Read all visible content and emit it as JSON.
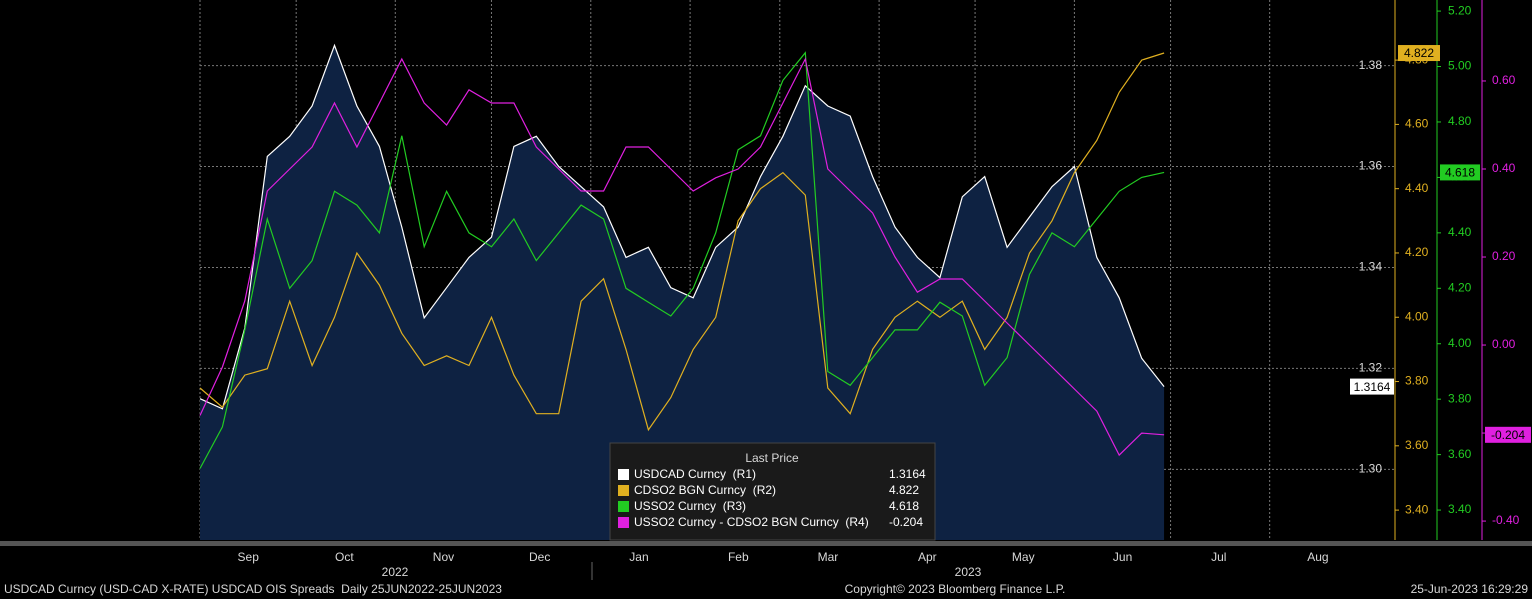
{
  "chart_data": {
    "type": "line",
    "legend_title": "Last Price",
    "footer_left": "USDCAD Curncy (USD-CAD X-RATE) USDCAD OIS Spreads  Daily 25JUN2022-25JUN2023",
    "footer_center": "Copyright© 2023 Bloomberg Finance L.P.",
    "footer_right": "25-Jun-2023 16:29:29",
    "year_labels": [
      "2022",
      "2023"
    ],
    "categories": [
      null,
      null,
      null,
      null,
      null,
      null,
      null,
      null,
      null,
      null,
      null,
      null,
      null,
      null,
      null,
      null,
      null,
      null,
      null,
      null,
      null,
      null,
      null,
      null,
      null,
      null,
      null,
      null,
      null,
      null,
      null,
      null,
      null,
      null,
      null,
      null,
      null,
      null,
      null,
      null,
      null,
      null,
      null,
      null
    ],
    "xlim": [
      0,
      53.3
    ],
    "xticks": [
      {
        "value": 0,
        "label": "Sep"
      },
      {
        "value": 4.29,
        "label": "Oct"
      },
      {
        "value": 8.71,
        "label": "Nov"
      },
      {
        "value": 13.0,
        "label": "Dec"
      },
      {
        "value": 17.43,
        "label": "Jan"
      },
      {
        "value": 21.86,
        "label": "Feb"
      },
      {
        "value": 25.86,
        "label": "Mar"
      },
      {
        "value": 30.29,
        "label": "Apr"
      },
      {
        "value": 34.57,
        "label": "May"
      },
      {
        "value": 39.0,
        "label": "Jun"
      },
      {
        "value": 43.29,
        "label": "Jul"
      },
      {
        "value": 47.71,
        "label": "Aug"
      }
    ],
    "ylim": [
      1.286,
      1.393
    ],
    "yticks": [
      {
        "value": 1.3,
        "label": "1.30"
      },
      {
        "value": 1.32,
        "label": "1.32"
      },
      {
        "value": 1.34,
        "label": "1.34"
      },
      {
        "value": 1.36,
        "label": "1.36"
      },
      {
        "value": 1.38,
        "label": "1.38"
      }
    ],
    "y2lim": [
      3.307,
      4.987
    ],
    "y2ticks": [
      {
        "value": 3.4,
        "label": "3.40"
      },
      {
        "value": 3.6,
        "label": "3.60"
      },
      {
        "value": 3.8,
        "label": "3.80"
      },
      {
        "value": 4.0,
        "label": "4.00"
      },
      {
        "value": 4.2,
        "label": "4.20"
      },
      {
        "value": 4.4,
        "label": "4.40"
      },
      {
        "value": 4.6,
        "label": "4.60"
      },
      {
        "value": 4.8,
        "label": "4.80"
      }
    ],
    "y3lim": [
      3.292,
      5.24
    ],
    "y3ticks": [
      {
        "value": 3.4,
        "label": "3.40"
      },
      {
        "value": 3.6,
        "label": "3.60"
      },
      {
        "value": 3.8,
        "label": "3.80"
      },
      {
        "value": 4.0,
        "label": "4.00"
      },
      {
        "value": 4.2,
        "label": "4.20"
      },
      {
        "value": 4.4,
        "label": "4.40"
      },
      {
        "value": 4.6,
        "label": "4.60"
      },
      {
        "value": 4.8,
        "label": "4.80"
      },
      {
        "value": 5.0,
        "label": "5.00"
      },
      {
        "value": 5.2,
        "label": "5.20"
      }
    ],
    "y4lim": [
      -0.443,
      0.784
    ],
    "y4ticks": [
      {
        "value": -0.4,
        "label": "-0.40"
      },
      {
        "value": -0.2,
        "label": "-0.20"
      },
      {
        "value": 0,
        "label": "0.00"
      },
      {
        "value": 0.2,
        "label": "0.20"
      },
      {
        "value": 0.4,
        "label": "0.40"
      },
      {
        "value": 0.6,
        "label": "0.60"
      }
    ],
    "grid": true,
    "series": [
      {
        "name": "USDCAD Curncy  (R1)",
        "color": "#ffffff",
        "axis": "y",
        "area": true,
        "values": [
          1.314,
          1.312,
          1.328,
          1.362,
          1.366,
          1.372,
          1.384,
          1.372,
          1.364,
          1.348,
          1.33,
          1.336,
          1.342,
          1.346,
          1.364,
          1.366,
          1.36,
          1.356,
          1.352,
          1.342,
          1.344,
          1.336,
          1.334,
          1.344,
          1.348,
          1.358,
          1.366,
          1.376,
          1.372,
          1.37,
          1.358,
          1.348,
          1.342,
          1.338,
          1.354,
          1.358,
          1.344,
          1.35,
          1.356,
          1.36,
          1.342,
          1.334,
          1.322,
          1.3164
        ]
      },
      {
        "name": "CDSO2 BGN Curncy  (R2)",
        "color": "#e0b020",
        "axis": "y2",
        "values": [
          3.78,
          3.72,
          3.82,
          3.84,
          4.05,
          3.85,
          4.0,
          4.2,
          4.1,
          3.95,
          3.85,
          3.88,
          3.85,
          4.0,
          3.82,
          3.7,
          3.7,
          4.05,
          4.12,
          3.9,
          3.65,
          3.75,
          3.9,
          4.0,
          4.3,
          4.4,
          4.45,
          4.38,
          3.78,
          3.7,
          3.9,
          4.0,
          4.05,
          4.0,
          4.05,
          3.9,
          4.0,
          4.2,
          4.3,
          4.45,
          4.55,
          4.7,
          4.8,
          4.822
        ]
      },
      {
        "name": "USSO2 Curncy  (R3)",
        "color": "#22cc22",
        "axis": "y3",
        "values": [
          3.55,
          3.7,
          4.05,
          4.45,
          4.2,
          4.3,
          4.55,
          4.5,
          4.4,
          4.75,
          4.35,
          4.55,
          4.4,
          4.35,
          4.45,
          4.3,
          4.4,
          4.5,
          4.45,
          4.2,
          4.15,
          4.1,
          4.2,
          4.4,
          4.7,
          4.75,
          4.95,
          5.05,
          3.9,
          3.85,
          3.95,
          4.05,
          4.05,
          4.15,
          4.1,
          3.85,
          3.95,
          4.25,
          4.4,
          4.35,
          4.45,
          4.55,
          4.6,
          4.618
        ]
      },
      {
        "name": "USSO2 Curncy - CDSO2 BGN Curncy  (R4)",
        "color": "#e020e0",
        "axis": "y4",
        "values": [
          -0.16,
          -0.05,
          0.1,
          0.35,
          0.4,
          0.45,
          0.55,
          0.45,
          0.55,
          0.65,
          0.55,
          0.5,
          0.58,
          0.55,
          0.55,
          0.45,
          0.4,
          0.35,
          0.35,
          0.45,
          0.45,
          0.4,
          0.35,
          0.38,
          0.4,
          0.45,
          0.55,
          0.65,
          0.4,
          0.35,
          0.3,
          0.2,
          0.12,
          0.15,
          0.15,
          0.1,
          0.05,
          0.0,
          -0.05,
          -0.1,
          -0.15,
          -0.25,
          -0.2,
          -0.204
        ]
      }
    ]
  }
}
